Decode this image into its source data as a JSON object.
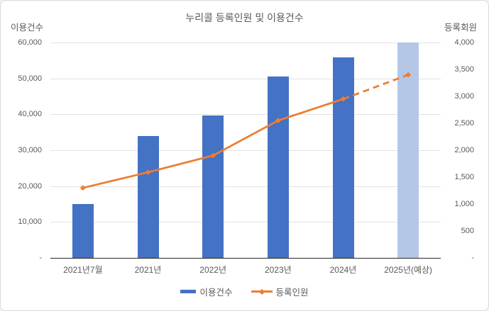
{
  "chart_data": {
    "type": "combo",
    "title": "누리콜 등록인원 및 이용건수",
    "categories": [
      "2021년7월",
      "2021년",
      "2022년",
      "2023년",
      "2024년",
      "2025년(예상)"
    ],
    "series": [
      {
        "name": "이용건수",
        "type": "bar",
        "axis": "left",
        "values": [
          15000,
          34000,
          39700,
          50500,
          55800,
          60000
        ],
        "color": "#4472C4",
        "projected_index": 5,
        "projected_color": "#B4C7E7"
      },
      {
        "name": "등록인원",
        "type": "line",
        "axis": "right",
        "values": [
          1300,
          1590,
          1900,
          2550,
          2950,
          3400
        ],
        "color": "#ED7D31",
        "marker": "diamond",
        "dashed_from_index": 4
      }
    ],
    "left_axis": {
      "title": "이용건수",
      "min": 0,
      "max": 60000,
      "step": 10000,
      "zero_label": "-"
    },
    "right_axis": {
      "title": "등록회원",
      "min": 0,
      "max": 4000,
      "step": 500,
      "zero_label": "-"
    },
    "legend": {
      "position": "bottom",
      "items": [
        "이용건수",
        "등록인원"
      ]
    },
    "grid": true
  },
  "colors": {
    "bar": "#4472C4",
    "bar_projected": "#B4C7E7",
    "line": "#ED7D31",
    "text": "#595959",
    "gridline": "#E2E2E2",
    "axis_line": "#262626",
    "border": "#D9D9D9"
  }
}
